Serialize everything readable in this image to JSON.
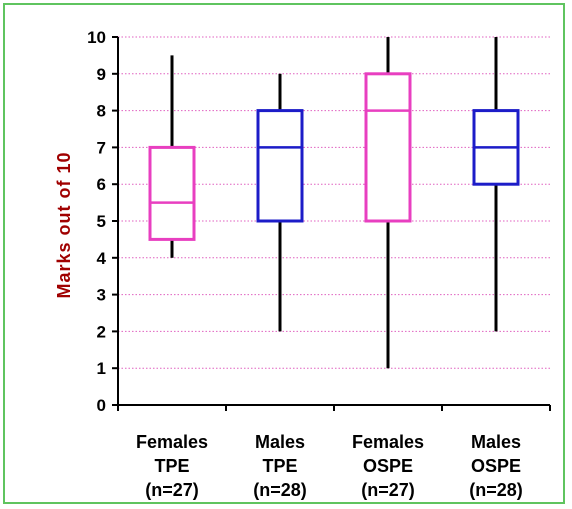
{
  "chart_data": {
    "type": "box",
    "ylabel": "Marks out of 10",
    "xlabel": "",
    "title": "",
    "ylim": [
      0,
      10
    ],
    "yticks": [
      "0",
      "1",
      "2",
      "3",
      "4",
      "5",
      "6",
      "7",
      "8",
      "9",
      "10"
    ],
    "grid": "horizontal dotted",
    "categories": [
      {
        "lines": [
          "Females",
          "TPE",
          "(n=27)"
        ],
        "min": 4,
        "q1": 4.5,
        "median": 5.5,
        "q3": 7,
        "max": 9.5,
        "color": "#e83fc0"
      },
      {
        "lines": [
          "Males",
          "TPE",
          "(n=28)"
        ],
        "min": 2,
        "q1": 5,
        "median": 7,
        "q3": 8,
        "max": 9,
        "color": "#1c1cc8"
      },
      {
        "lines": [
          "Females",
          "OSPE",
          "(n=27)"
        ],
        "min": 1,
        "q1": 5,
        "median": 8,
        "q3": 9,
        "max": 10,
        "color": "#e83fc0"
      },
      {
        "lines": [
          "Males",
          "OSPE",
          "(n=28)"
        ],
        "min": 2,
        "q1": 6,
        "median": 7,
        "q3": 8,
        "max": 10,
        "color": "#1c1cc8"
      }
    ],
    "colors": {
      "grid": "#e060c0",
      "axis": "#000000",
      "whisker": "#000000",
      "ylabel": "#a00000",
      "frame": "#5fc45f"
    }
  }
}
